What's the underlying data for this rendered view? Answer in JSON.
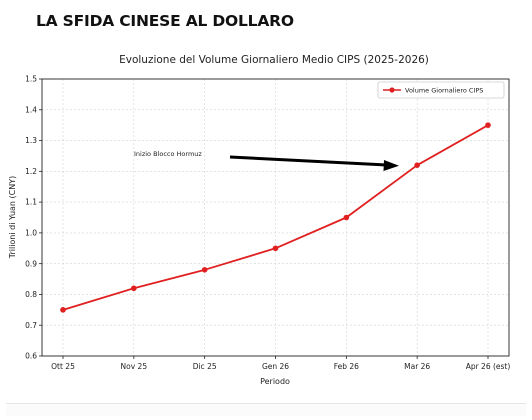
{
  "header": {
    "title": "LA SFIDA CINESE AL DOLLARO"
  },
  "chart_data": {
    "type": "line",
    "title": "Evoluzione del Volume Giornaliero Medio CIPS (2025-2026)",
    "xlabel": "Periodo",
    "ylabel": "Trilioni di Yuan (CNY)",
    "categories": [
      "Ott 25",
      "Nov 25",
      "Dic 25",
      "Gen 26",
      "Feb 26",
      "Mar 26",
      "Apr 26 (est)"
    ],
    "series": [
      {
        "name": "Volume Giornaliero CIPS",
        "color": "#e02020",
        "values": [
          0.75,
          0.82,
          0.88,
          0.95,
          1.05,
          1.22,
          1.35
        ]
      }
    ],
    "ylim": [
      0.6,
      1.5
    ],
    "yticks": [
      "0.6",
      "0.7",
      "0.8",
      "0.9",
      "1.0",
      "1.1",
      "1.2",
      "1.3",
      "1.4",
      "1.5"
    ],
    "grid": true,
    "legend_position": "top-right",
    "annotation": {
      "text": "Inizio Blocco Hormuz",
      "points_to_category": "Mar 26"
    }
  }
}
